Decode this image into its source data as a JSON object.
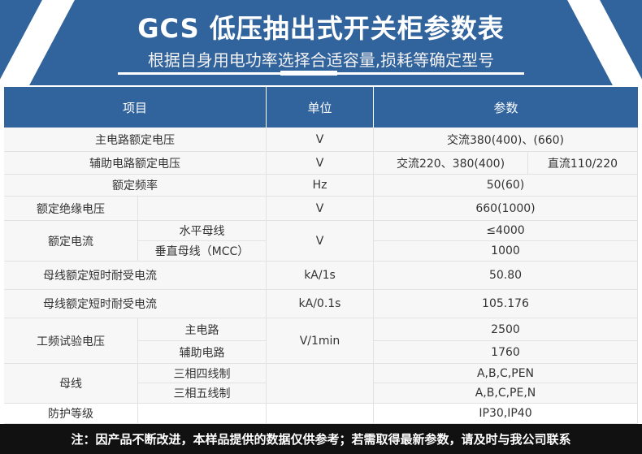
{
  "banner": {
    "title": "GCS 低压抽出式开关柜参数表",
    "subtitle": "根据自身用电功率选择合适容量,损耗等确定型号"
  },
  "header": {
    "item": "项目",
    "unit": "单位",
    "param": "参数"
  },
  "rows": {
    "r1": {
      "item": "主电路额定电压",
      "unit": "V",
      "param": "交流380(400)、(660)"
    },
    "r2": {
      "item": "辅助电路额定电压",
      "unit": "V",
      "param_ac": "交流220、380(400)",
      "param_dc": "直流110/220"
    },
    "r3": {
      "item": "额定频率",
      "unit": "Hz",
      "param": "50(60)"
    },
    "r4": {
      "item": "额定绝缘电压",
      "unit": "V",
      "param": "660(1000)"
    },
    "r5": {
      "item": "额定电流",
      "unit": "V",
      "sub1": "水平母线",
      "param1": "≤4000",
      "sub2": "垂直母线（MCC）",
      "param2": "1000"
    },
    "r7": {
      "item": "母线额定短时耐受电流",
      "unit": "kA/1s",
      "param": "50.80"
    },
    "r8": {
      "item": "母线额定短时耐受电流",
      "unit": "kA/0.1s",
      "param": "105.176"
    },
    "r9": {
      "item": "工频试验电压",
      "unit": "V/1min",
      "sub1": "主电路",
      "param1": "2500",
      "sub2": "辅助电路",
      "param2": "1760"
    },
    "r11": {
      "item": "母线",
      "sub1": "三相四线制",
      "param1": "A,B,C,PEN",
      "sub2": "三相五线制",
      "param2": "A,B,C,PE,N"
    },
    "r13": {
      "item": "防护等级",
      "param": "IP30,IP40"
    }
  },
  "footer": "注：因产品不断改进，本样品提供的数据仅供参考；若需取得最新参数，请及时与我公司联系",
  "colors": {
    "brand": "#31639c",
    "footer": "#111111"
  }
}
